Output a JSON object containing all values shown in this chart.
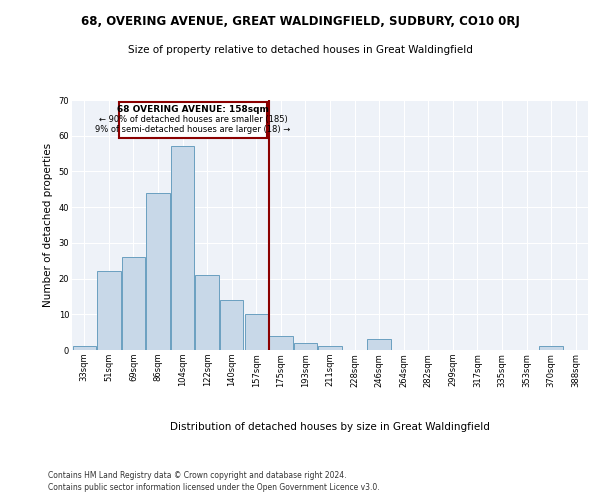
{
  "title1": "68, OVERING AVENUE, GREAT WALDINGFIELD, SUDBURY, CO10 0RJ",
  "title2": "Size of property relative to detached houses in Great Waldingfield",
  "xlabel": "Distribution of detached houses by size in Great Waldingfield",
  "ylabel": "Number of detached properties",
  "footnote1": "Contains HM Land Registry data © Crown copyright and database right 2024.",
  "footnote2": "Contains public sector information licensed under the Open Government Licence v3.0.",
  "annotation_title": "68 OVERING AVENUE: 158sqm",
  "annotation_line1": "← 90% of detached houses are smaller (185)",
  "annotation_line2": "9% of semi-detached houses are larger (18) →",
  "bar_color": "#c8d8e8",
  "bar_edge_color": "#6a9fc0",
  "vline_color": "#8b0000",
  "vline_x": 7.5,
  "categories": [
    "33sqm",
    "51sqm",
    "69sqm",
    "86sqm",
    "104sqm",
    "122sqm",
    "140sqm",
    "157sqm",
    "175sqm",
    "193sqm",
    "211sqm",
    "228sqm",
    "246sqm",
    "264sqm",
    "282sqm",
    "299sqm",
    "317sqm",
    "335sqm",
    "353sqm",
    "370sqm",
    "388sqm"
  ],
  "values": [
    1,
    22,
    26,
    44,
    57,
    21,
    14,
    10,
    4,
    2,
    1,
    0,
    3,
    0,
    0,
    0,
    0,
    0,
    0,
    1,
    0
  ],
  "ylim": [
    0,
    70
  ],
  "yticks": [
    0,
    10,
    20,
    30,
    40,
    50,
    60,
    70
  ],
  "bg_color": "#eef2f8",
  "grid_color": "#ffffff",
  "fig_bg": "#ffffff",
  "title1_fontsize": 8.5,
  "title2_fontsize": 7.5,
  "ylabel_fontsize": 7.5,
  "xlabel_fontsize": 7.5,
  "tick_fontsize": 6.0,
  "footnote_fontsize": 5.5,
  "ann_title_fontsize": 6.5,
  "ann_text_fontsize": 6.0
}
